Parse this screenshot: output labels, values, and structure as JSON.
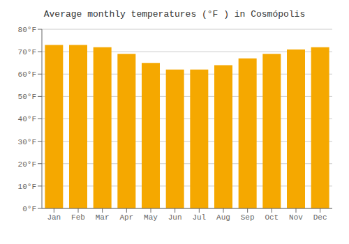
{
  "chart_data": {
    "type": "bar",
    "title": "Average monthly temperatures (°F ) in Cosmópolis",
    "categories": [
      "Jan",
      "Feb",
      "Mar",
      "Apr",
      "May",
      "Jun",
      "Jul",
      "Aug",
      "Sep",
      "Oct",
      "Nov",
      "Dec"
    ],
    "values": [
      73,
      73,
      72,
      69,
      65,
      62,
      62,
      64,
      67,
      69,
      71,
      72
    ],
    "color": "#F5A800",
    "ylim": [
      0,
      80
    ],
    "yticks": [
      {
        "value": 0,
        "label": "0°F"
      },
      {
        "value": 10,
        "label": "10°F"
      },
      {
        "value": 20,
        "label": "20°F"
      },
      {
        "value": 30,
        "label": "30°F"
      },
      {
        "value": 40,
        "label": "40°F"
      },
      {
        "value": 50,
        "label": "50°F"
      },
      {
        "value": 60,
        "label": "60°F"
      },
      {
        "value": 70,
        "label": "70°F"
      },
      {
        "value": 80,
        "label": "80°F"
      }
    ],
    "grid": true
  }
}
